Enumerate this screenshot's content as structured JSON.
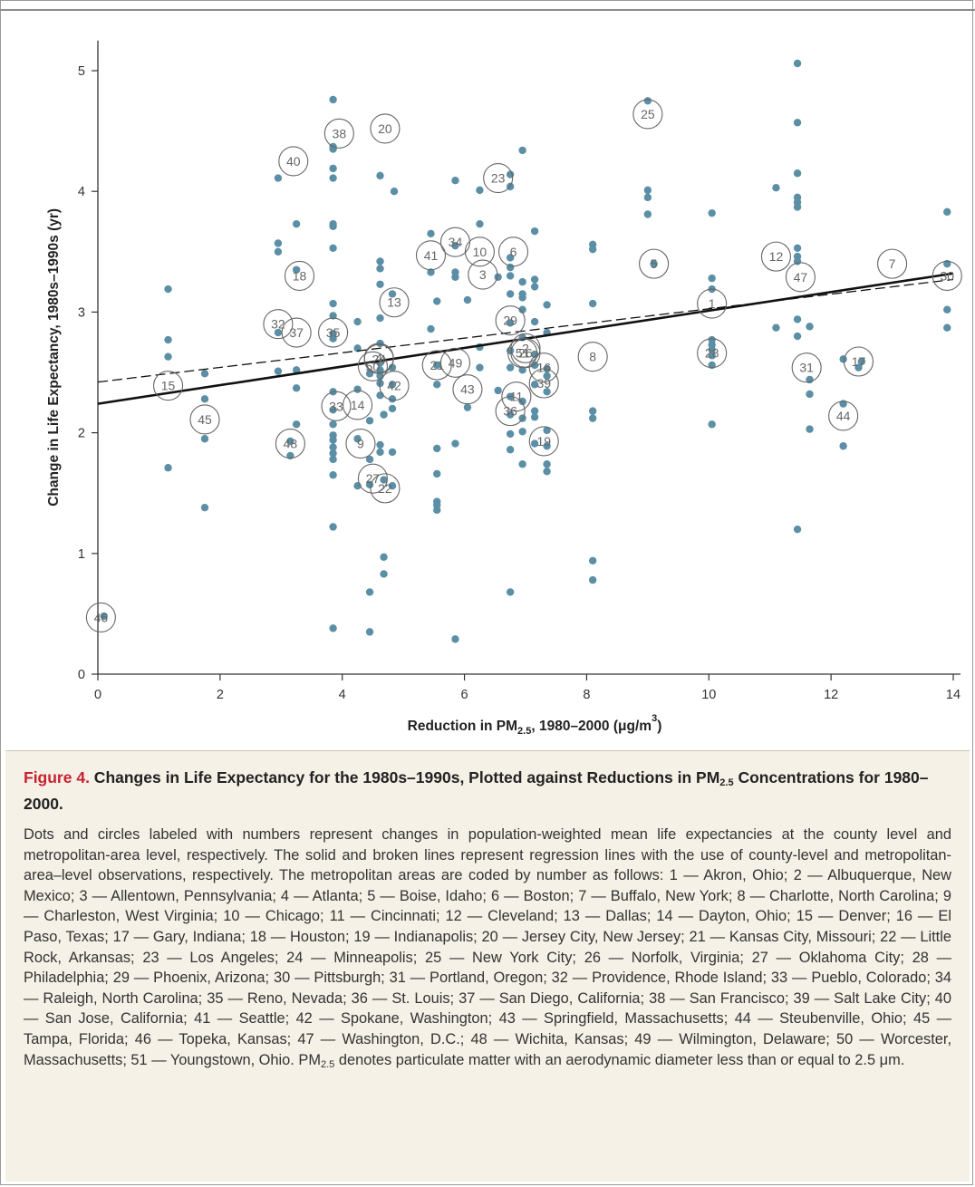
{
  "colors": {
    "dot": "#5b8fa6",
    "accent": "#c8202f",
    "caption_bg": "#f6f1e7"
  },
  "chart_data": {
    "type": "scatter",
    "xlabel": {
      "main": "Reduction in PM",
      "sub": "2.5",
      "rest": ", 1980–2000 (μg/m",
      "sup": "3",
      "end": ")"
    },
    "ylabel": "Change in Life Expectancy, 1980s–1990s (yr)",
    "xlim": [
      0,
      14
    ],
    "ylim": [
      0,
      5.25
    ],
    "xticks": [
      0,
      2,
      4,
      6,
      8,
      10,
      12,
      14
    ],
    "yticks": [
      0,
      1,
      2,
      3,
      4,
      5
    ],
    "grid": false,
    "county_points": [
      [
        1.15,
        3.19
      ],
      [
        1.15,
        2.77
      ],
      [
        1.15,
        2.63
      ],
      [
        1.15,
        1.71
      ],
      [
        1.75,
        2.49
      ],
      [
        1.75,
        2.28
      ],
      [
        1.75,
        1.95
      ],
      [
        1.75,
        1.38
      ],
      [
        2.95,
        4.11
      ],
      [
        2.95,
        3.57
      ],
      [
        2.95,
        3.5
      ],
      [
        2.95,
        2.83
      ],
      [
        2.95,
        2.51
      ],
      [
        3.15,
        1.81
      ],
      [
        3.15,
        1.93
      ],
      [
        3.25,
        3.73
      ],
      [
        3.25,
        3.35
      ],
      [
        3.25,
        2.52
      ],
      [
        3.25,
        2.37
      ],
      [
        3.25,
        2.07
      ],
      [
        3.85,
        4.76
      ],
      [
        3.85,
        4.37
      ],
      [
        3.85,
        4.35
      ],
      [
        3.85,
        4.19
      ],
      [
        3.85,
        4.11
      ],
      [
        3.85,
        3.73
      ],
      [
        3.85,
        3.71
      ],
      [
        3.85,
        3.53
      ],
      [
        3.85,
        3.07
      ],
      [
        3.85,
        2.97
      ],
      [
        3.85,
        2.82
      ],
      [
        3.85,
        2.78
      ],
      [
        3.85,
        2.34
      ],
      [
        3.85,
        2.19
      ],
      [
        3.85,
        2.07
      ],
      [
        3.85,
        1.98
      ],
      [
        3.85,
        1.94
      ],
      [
        3.85,
        1.88
      ],
      [
        3.85,
        1.83
      ],
      [
        3.85,
        1.78
      ],
      [
        3.85,
        1.65
      ],
      [
        3.85,
        1.22
      ],
      [
        3.85,
        0.38
      ],
      [
        4.25,
        2.92
      ],
      [
        4.25,
        2.7
      ],
      [
        4.25,
        2.36
      ],
      [
        4.25,
        1.95
      ],
      [
        4.25,
        1.56
      ],
      [
        4.45,
        2.49
      ],
      [
        4.45,
        2.1
      ],
      [
        4.45,
        1.78
      ],
      [
        4.45,
        1.57
      ],
      [
        4.45,
        0.68
      ],
      [
        4.45,
        0.35
      ],
      [
        4.62,
        4.13
      ],
      [
        4.62,
        3.42
      ],
      [
        4.62,
        3.36
      ],
      [
        4.62,
        3.23
      ],
      [
        4.62,
        2.95
      ],
      [
        4.62,
        2.74
      ],
      [
        4.62,
        2.58
      ],
      [
        4.62,
        2.52
      ],
      [
        4.62,
        2.47
      ],
      [
        4.62,
        2.41
      ],
      [
        4.62,
        2.31
      ],
      [
        4.62,
        1.9
      ],
      [
        4.62,
        1.84
      ],
      [
        4.68,
        2.15
      ],
      [
        4.68,
        1.61
      ],
      [
        4.68,
        0.97
      ],
      [
        4.68,
        0.83
      ],
      [
        4.82,
        3.15
      ],
      [
        4.82,
        2.54
      ],
      [
        4.82,
        2.4
      ],
      [
        4.82,
        2.28
      ],
      [
        4.82,
        2.2
      ],
      [
        4.82,
        1.84
      ],
      [
        4.82,
        1.56
      ],
      [
        4.85,
        4.0
      ],
      [
        5.45,
        3.65
      ],
      [
        5.45,
        3.33
      ],
      [
        5.45,
        2.86
      ],
      [
        5.55,
        3.09
      ],
      [
        5.55,
        2.56
      ],
      [
        5.55,
        2.4
      ],
      [
        5.55,
        1.87
      ],
      [
        5.55,
        1.66
      ],
      [
        5.55,
        1.43
      ],
      [
        5.55,
        1.4
      ],
      [
        5.55,
        1.36
      ],
      [
        5.85,
        4.09
      ],
      [
        5.85,
        3.55
      ],
      [
        5.85,
        3.33
      ],
      [
        5.85,
        3.29
      ],
      [
        5.85,
        1.91
      ],
      [
        5.85,
        0.29
      ],
      [
        6.05,
        3.1
      ],
      [
        6.05,
        2.21
      ],
      [
        6.25,
        4.01
      ],
      [
        6.25,
        3.73
      ],
      [
        6.25,
        2.71
      ],
      [
        6.25,
        2.54
      ],
      [
        6.55,
        3.29
      ],
      [
        6.55,
        2.35
      ],
      [
        6.75,
        4.14
      ],
      [
        6.75,
        4.04
      ],
      [
        6.75,
        3.45
      ],
      [
        6.75,
        3.37
      ],
      [
        6.75,
        3.3
      ],
      [
        6.75,
        3.15
      ],
      [
        6.75,
        2.91
      ],
      [
        6.75,
        2.68
      ],
      [
        6.75,
        2.54
      ],
      [
        6.75,
        2.3
      ],
      [
        6.75,
        2.15
      ],
      [
        6.75,
        1.99
      ],
      [
        6.75,
        1.86
      ],
      [
        6.75,
        0.68
      ],
      [
        6.95,
        4.34
      ],
      [
        6.95,
        3.25
      ],
      [
        6.95,
        3.15
      ],
      [
        6.95,
        3.12
      ],
      [
        6.95,
        3.02
      ],
      [
        6.95,
        2.79
      ],
      [
        6.95,
        2.52
      ],
      [
        6.95,
        2.26
      ],
      [
        6.95,
        2.12
      ],
      [
        6.95,
        2.01
      ],
      [
        6.95,
        1.74
      ],
      [
        7.15,
        3.67
      ],
      [
        7.15,
        3.27
      ],
      [
        7.15,
        3.21
      ],
      [
        7.15,
        2.92
      ],
      [
        7.15,
        2.65
      ],
      [
        7.15,
        2.56
      ],
      [
        7.15,
        2.4
      ],
      [
        7.15,
        2.18
      ],
      [
        7.15,
        2.13
      ],
      [
        7.15,
        1.91
      ],
      [
        7.35,
        3.06
      ],
      [
        7.35,
        2.83
      ],
      [
        7.35,
        2.53
      ],
      [
        7.35,
        2.47
      ],
      [
        7.35,
        2.34
      ],
      [
        7.35,
        2.02
      ],
      [
        7.35,
        1.89
      ],
      [
        7.35,
        1.74
      ],
      [
        7.35,
        1.68
      ],
      [
        8.1,
        3.56
      ],
      [
        8.1,
        3.52
      ],
      [
        8.1,
        3.07
      ],
      [
        8.1,
        2.18
      ],
      [
        8.1,
        2.12
      ],
      [
        8.1,
        0.94
      ],
      [
        8.1,
        0.78
      ],
      [
        9.0,
        4.75
      ],
      [
        9.0,
        4.01
      ],
      [
        9.0,
        3.95
      ],
      [
        9.0,
        3.81
      ],
      [
        10.05,
        3.82
      ],
      [
        10.05,
        3.28
      ],
      [
        10.05,
        3.19
      ],
      [
        10.05,
        2.77
      ],
      [
        10.05,
        2.73
      ],
      [
        10.05,
        2.69
      ],
      [
        10.05,
        2.64
      ],
      [
        10.05,
        2.56
      ],
      [
        10.05,
        2.07
      ],
      [
        11.1,
        4.03
      ],
      [
        11.1,
        2.87
      ],
      [
        11.45,
        5.06
      ],
      [
        11.45,
        4.57
      ],
      [
        11.45,
        4.15
      ],
      [
        11.45,
        3.95
      ],
      [
        11.45,
        3.91
      ],
      [
        11.45,
        3.87
      ],
      [
        11.45,
        3.53
      ],
      [
        11.45,
        3.46
      ],
      [
        11.45,
        3.42
      ],
      [
        11.45,
        2.94
      ],
      [
        11.45,
        2.8
      ],
      [
        11.45,
        1.2
      ],
      [
        11.65,
        2.88
      ],
      [
        11.65,
        2.44
      ],
      [
        11.65,
        2.32
      ],
      [
        11.65,
        2.03
      ],
      [
        12.2,
        2.61
      ],
      [
        12.2,
        2.24
      ],
      [
        12.2,
        1.89
      ],
      [
        12.45,
        2.54
      ],
      [
        13.9,
        3.83
      ],
      [
        13.9,
        3.4
      ],
      [
        13.9,
        3.02
      ],
      [
        13.9,
        2.87
      ],
      [
        0.1,
        0.48
      ],
      [
        12.5,
        2.59
      ],
      [
        9.1,
        3.4
      ]
    ],
    "metro_points": [
      {
        "label": "1",
        "x": 10.05,
        "y": 3.07
      },
      {
        "label": "2",
        "x": 7.0,
        "y": 2.7
      },
      {
        "label": "3",
        "x": 6.3,
        "y": 3.31
      },
      {
        "label": "4",
        "x": 4.6,
        "y": 2.62
      },
      {
        "label": "5",
        "x": 9.1,
        "y": 3.4
      },
      {
        "label": "6",
        "x": 6.8,
        "y": 3.5
      },
      {
        "label": "7",
        "x": 13.0,
        "y": 3.4
      },
      {
        "label": "8",
        "x": 8.1,
        "y": 2.63
      },
      {
        "label": "9",
        "x": 4.3,
        "y": 1.91
      },
      {
        "label": "10",
        "x": 6.25,
        "y": 3.5
      },
      {
        "label": "11",
        "x": 6.85,
        "y": 2.3
      },
      {
        "label": "12",
        "x": 11.1,
        "y": 3.46
      },
      {
        "label": "13",
        "x": 4.85,
        "y": 3.08
      },
      {
        "label": "14",
        "x": 4.25,
        "y": 2.23
      },
      {
        "label": "15",
        "x": 1.15,
        "y": 2.39
      },
      {
        "label": "16",
        "x": 7.3,
        "y": 2.54
      },
      {
        "label": "17",
        "x": 12.45,
        "y": 2.59
      },
      {
        "label": "18",
        "x": 3.3,
        "y": 3.3
      },
      {
        "label": "19",
        "x": 7.3,
        "y": 1.93
      },
      {
        "label": "20",
        "x": 4.7,
        "y": 4.52
      },
      {
        "label": "21",
        "x": 5.55,
        "y": 2.56
      },
      {
        "label": "22",
        "x": 4.7,
        "y": 1.54
      },
      {
        "label": "23",
        "x": 6.55,
        "y": 4.11
      },
      {
        "label": "24",
        "x": 4.6,
        "y": 2.61
      },
      {
        "label": "25",
        "x": 9.0,
        "y": 4.64
      },
      {
        "label": "26",
        "x": 7.0,
        "y": 2.66
      },
      {
        "label": "27",
        "x": 4.5,
        "y": 1.62
      },
      {
        "label": "28",
        "x": 10.05,
        "y": 2.66
      },
      {
        "label": "29",
        "x": 6.75,
        "y": 2.93
      },
      {
        "label": "30",
        "x": 13.9,
        "y": 3.3
      },
      {
        "label": "31",
        "x": 11.6,
        "y": 2.54
      },
      {
        "label": "32",
        "x": 2.95,
        "y": 2.9
      },
      {
        "label": "33",
        "x": 3.9,
        "y": 2.22
      },
      {
        "label": "34",
        "x": 5.85,
        "y": 3.58
      },
      {
        "label": "35",
        "x": 3.85,
        "y": 2.83
      },
      {
        "label": "36",
        "x": 6.75,
        "y": 2.18
      },
      {
        "label": "37",
        "x": 3.25,
        "y": 2.83
      },
      {
        "label": "38",
        "x": 3.95,
        "y": 4.48
      },
      {
        "label": "39",
        "x": 7.3,
        "y": 2.41
      },
      {
        "label": "40",
        "x": 3.2,
        "y": 4.25
      },
      {
        "label": "41",
        "x": 5.45,
        "y": 3.47
      },
      {
        "label": "42",
        "x": 4.85,
        "y": 2.39
      },
      {
        "label": "43",
        "x": 6.05,
        "y": 2.36
      },
      {
        "label": "44",
        "x": 12.2,
        "y": 2.14
      },
      {
        "label": "45",
        "x": 1.75,
        "y": 2.11
      },
      {
        "label": "46",
        "x": 0.05,
        "y": 0.47
      },
      {
        "label": "47",
        "x": 11.5,
        "y": 3.29
      },
      {
        "label": "48",
        "x": 3.15,
        "y": 1.91
      },
      {
        "label": "49",
        "x": 5.85,
        "y": 2.58
      },
      {
        "label": "50",
        "x": 4.5,
        "y": 2.55
      },
      {
        "label": "51",
        "x": 6.95,
        "y": 2.66
      }
    ],
    "regression_lines": [
      {
        "style": "solid",
        "x": [
          0,
          14
        ],
        "y": [
          2.24,
          3.32
        ]
      },
      {
        "style": "dashed",
        "x": [
          0,
          14
        ],
        "y": [
          2.42,
          3.27
        ]
      }
    ]
  },
  "caption": {
    "figure_label": "Figure 4.",
    "title_part1": " Changes in Life Expectancy for the 1980s–1990s, Plotted against Reductions in PM",
    "title_sub": "2.5",
    "title_part2": " Concentrations for 1980–2000.",
    "body_part1": "Dots and circles labeled with numbers represent changes in population-weighted mean life expectancies at the county level and metropolitan-area level, respectively. The solid and broken lines represent regression lines with the use of county-level and metropolitan-area–level observations, respectively. The metropolitan areas are coded by number as follows: 1 — Akron, Ohio; 2 — Albuquerque, New Mexico; 3 — Allentown, Pennsylvania; 4 — Atlanta; 5 — Boise, Idaho; 6 — Boston; 7 — Buffalo, New York; 8 — Charlotte, North Carolina; 9 — Charleston, West Virginia; 10 — Chicago; 11 — Cincinnati; 12 — Cleveland; 13 — Dallas; 14 — Dayton, Ohio; 15 — Denver; 16 — El Paso, Texas; 17 — Gary, Indiana; 18 — Houston; 19 — Indianapolis; 20 — Jersey City, New Jersey; 21 — Kansas City, Missouri; 22 — Little Rock, Arkansas; 23 — Los Angeles; 24 — Minneapolis; 25 — New York City; 26 — Norfolk, Virginia; 27 — Oklahoma City; 28 — Philadelphia; 29 — Phoenix, Arizona; 30 — Pittsburgh; 31 — Portland, Oregon; 32 — Providence, Rhode Island; 33 — Pueblo, Colorado; 34 — Raleigh, North Carolina; 35 — Reno, Nevada; 36 — St. Louis; 37 — San Diego, California; 38 — San Francisco; 39 — Salt Lake City; 40 — San Jose, California; 41 — Seattle; 42 — Spokane, Washington; 43 — Springfield, Massachusetts; 44 — Steubenville, Ohio; 45 — Tampa, Florida; 46 — Topeka, Kansas; 47 — Washington, D.C.; 48 — Wichita, Kansas; 49 — Wilmington, Delaware; 50 — Worcester, Massachusetts; 51 — Youngstown, Ohio. PM",
    "body_sub": "2.5",
    "body_part2": " denotes particulate matter with an aerodynamic diameter less than or equal to 2.5 μm."
  }
}
